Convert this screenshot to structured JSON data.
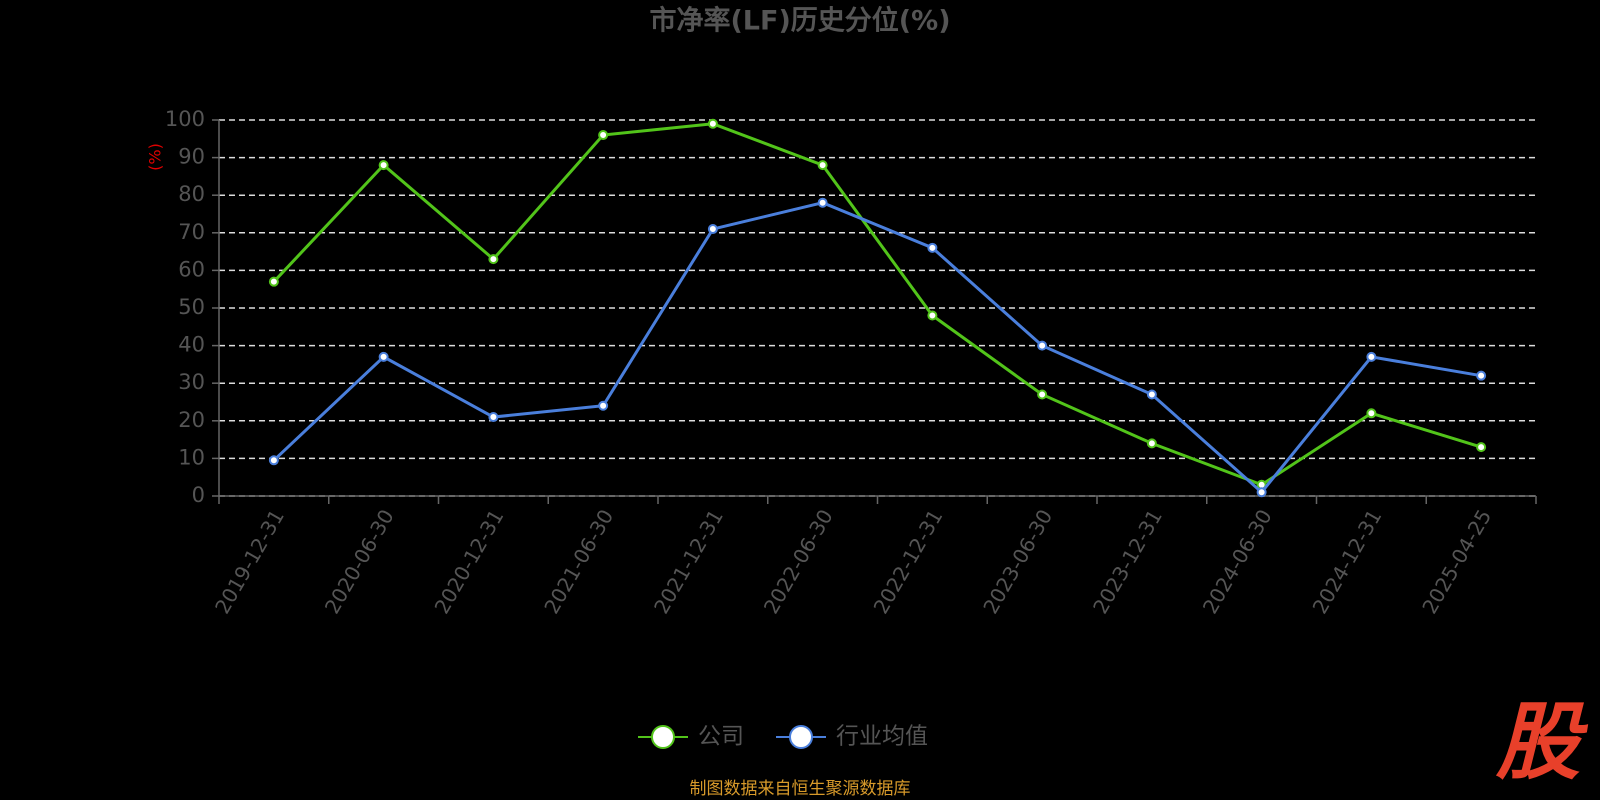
{
  "chart_data": {
    "type": "line",
    "title": "市净率(LF)历史分位(%)",
    "y_label": "(%)",
    "categories": [
      "2019-12-31",
      "2020-06-30",
      "2020-12-31",
      "2021-06-30",
      "2021-12-31",
      "2022-06-30",
      "2022-12-31",
      "2023-06-30",
      "2023-12-31",
      "2024-06-30",
      "2024-12-31",
      "2025-04-25"
    ],
    "series": [
      {
        "name": "公司",
        "color": "#52c41a",
        "values": [
          57,
          88,
          63,
          96,
          99,
          88,
          48,
          27,
          14,
          3,
          22,
          13
        ]
      },
      {
        "name": "行业均值",
        "color": "#4a7fdc",
        "values": [
          9.5,
          37,
          21,
          24,
          71,
          78,
          66,
          40,
          27,
          1,
          37,
          32
        ]
      }
    ],
    "ylim": [
      0,
      100
    ],
    "yticks": [
      0,
      10,
      20,
      30,
      40,
      50,
      60,
      70,
      80,
      90,
      100
    ],
    "grid": true,
    "legend": "bottom",
    "source": "制图数据来自恒生聚源数据库",
    "watermark": "股"
  }
}
